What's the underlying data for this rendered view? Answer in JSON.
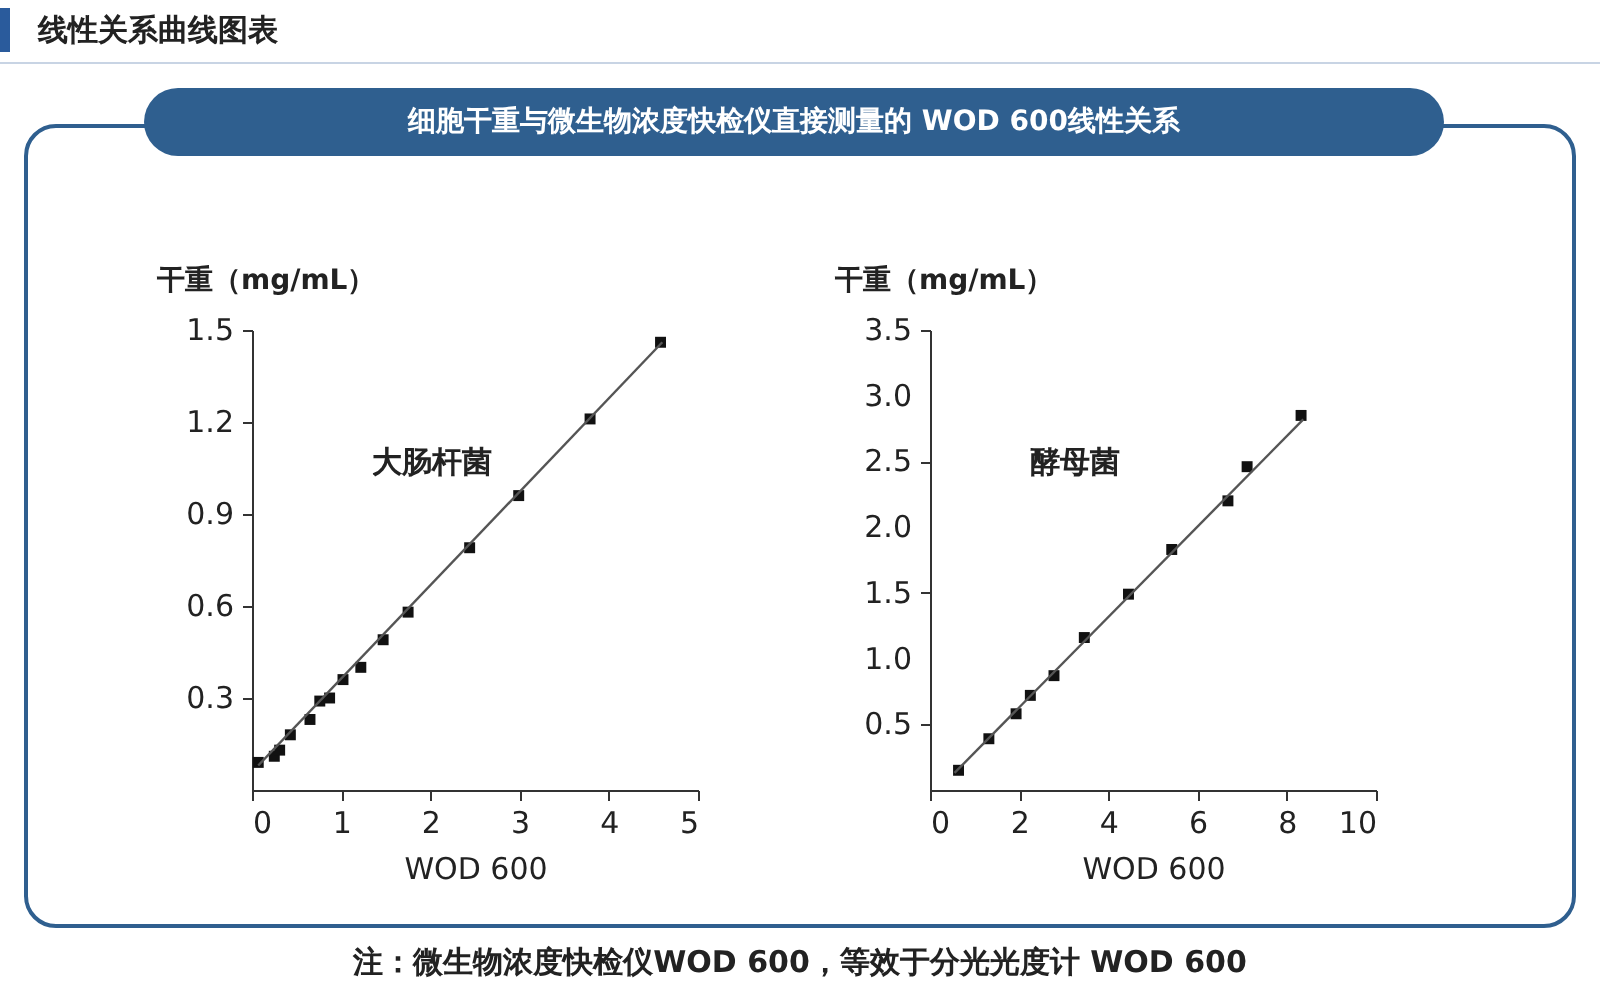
{
  "chart_data": [
    {
      "type": "scatter",
      "title": "细胞干重与微生物浓度快检仪直接测量的 WOD 600线性关系",
      "subtitle": "线性关系曲线图表",
      "xlabel": "WOD 600",
      "ylabel": "干重（mg/mL）",
      "xlim": [
        0,
        5
      ],
      "ylim": [
        0,
        1.5
      ],
      "xticks": [
        0,
        1,
        2,
        3,
        4,
        5
      ],
      "yticks": [
        0.3,
        0.6,
        0.9,
        1.2,
        1.5
      ],
      "grid": false,
      "legend": false,
      "series": [
        {
          "name": "大肠杆菌",
          "color": "#111111",
          "marker": "square",
          "x": [
            0.07,
            0.25,
            0.31,
            0.43,
            0.65,
            0.76,
            0.87,
            1.02,
            1.22,
            1.47,
            1.75,
            2.44,
            2.99,
            3.79,
            4.58
          ],
          "values": [
            0.09,
            0.11,
            0.13,
            0.18,
            0.23,
            0.29,
            0.3,
            0.36,
            0.4,
            0.49,
            0.58,
            0.79,
            0.96,
            1.21,
            1.46
          ]
        },
        {
          "type": "line",
          "color": "#555555",
          "x": [
            0.07,
            4.6
          ],
          "values": [
            0.08,
            1.46
          ]
        }
      ]
    },
    {
      "type": "scatter",
      "xlabel": "WOD 600",
      "ylabel": "干重（mg/mL）",
      "xlim": [
        0,
        10
      ],
      "ylim": [
        0,
        3.5
      ],
      "xticks": [
        0,
        2,
        4,
        6,
        8,
        10
      ],
      "yticks": [
        {
          "value": 0.5,
          "label": "0.5"
        },
        {
          "value": 1,
          "label": "1.0"
        },
        {
          "value": 1.5,
          "label": "1.5"
        },
        {
          "value": 2,
          "label": "2.0"
        },
        {
          "value": 2.5,
          "label": "2.5"
        },
        {
          "value": 3,
          "label": "3.0"
        },
        {
          "value": 3.5,
          "label": "3.5"
        }
      ],
      "grid": false,
      "legend": false,
      "annotations": [
        "注：微生物浓度快检仪WOD 600，等效于分光光度计 WOD 600"
      ],
      "series": [
        {
          "name": "酵母菌",
          "color": "#111111",
          "marker": "square",
          "x": [
            0.64,
            1.32,
            1.93,
            2.25,
            2.78,
            3.46,
            4.45,
            5.42,
            6.68,
            7.11,
            8.32
          ],
          "values": [
            0.15,
            0.39,
            0.58,
            0.72,
            0.87,
            1.16,
            1.49,
            1.83,
            2.2,
            2.46,
            2.85
          ]
        },
        {
          "type": "line",
          "color": "#555555",
          "x": [
            0.55,
            8.37
          ],
          "values": [
            0.13,
            2.82
          ]
        }
      ]
    }
  ]
}
